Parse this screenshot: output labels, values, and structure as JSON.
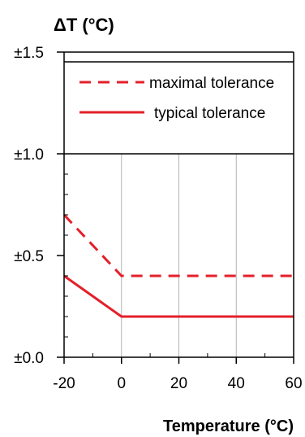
{
  "chart_data": {
    "type": "line",
    "ylabel": "ΔT (°C)",
    "xlabel": "Temperature (°C)",
    "xlim": [
      -20,
      60
    ],
    "ylim": [
      0,
      1.5
    ],
    "x_ticks": [
      -20,
      0,
      20,
      40,
      60
    ],
    "x_tick_labels": [
      "-20",
      "0",
      "20",
      "40",
      "60"
    ],
    "y_ticks": [
      0,
      0.5,
      1.0,
      1.5
    ],
    "y_tick_labels": [
      "±0.0",
      "±0.5",
      "±1.0",
      "±1.5"
    ],
    "grid": "vertical",
    "legend_position": "top",
    "line_color": "#e3202a",
    "series": [
      {
        "name": "maximal tolerance",
        "style": "dashed",
        "x": [
          -20,
          0,
          60
        ],
        "y": [
          0.7,
          0.4,
          0.4
        ]
      },
      {
        "name": "typical tolerance",
        "style": "solid",
        "x": [
          -20,
          0,
          60
        ],
        "y": [
          0.4,
          0.2,
          0.2
        ]
      }
    ]
  }
}
